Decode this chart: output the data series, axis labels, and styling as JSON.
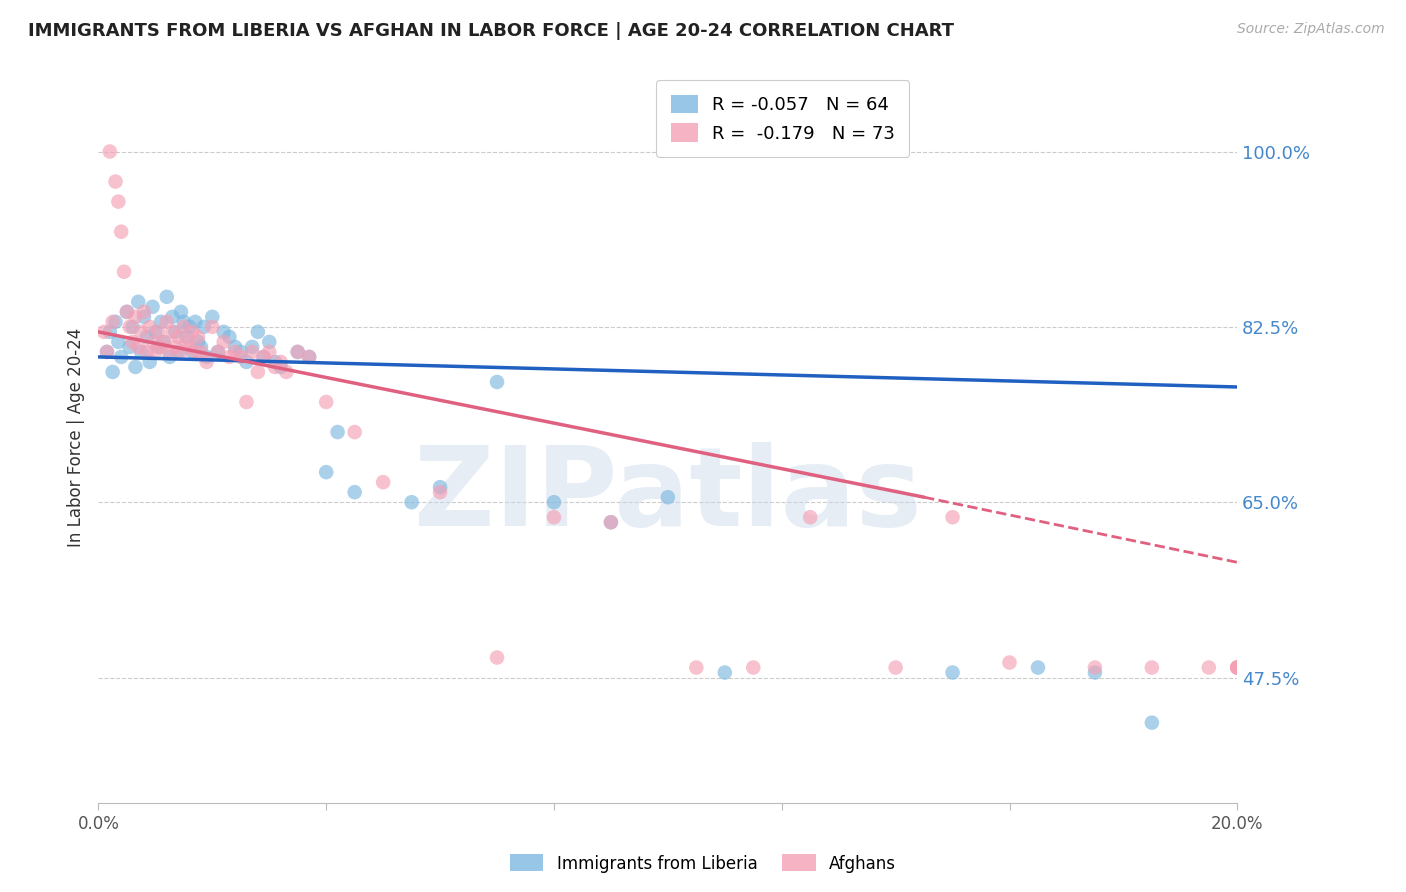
{
  "title": "IMMIGRANTS FROM LIBERIA VS AFGHAN IN LABOR FORCE | AGE 20-24 CORRELATION CHART",
  "source": "Source: ZipAtlas.com",
  "ylabel": "In Labor Force | Age 20-24",
  "yticks": [
    47.5,
    65.0,
    82.5,
    100.0
  ],
  "ytick_labels": [
    "47.5%",
    "65.0%",
    "82.5%",
    "100.0%"
  ],
  "xmin": 0.0,
  "xmax": 20.0,
  "ymin": 35.0,
  "ymax": 108.0,
  "liberia_color": "#7db8e0",
  "afghan_color": "#f4a0b5",
  "liberia_line_color": "#2060c0",
  "afghan_line_color": "#e06080",
  "watermark": "ZIPatlas",
  "liberia_legend": "R = -0.057   N = 64",
  "afghan_legend": "R =  -0.179   N = 73",
  "legend_label_blue": "Immigrants from Liberia",
  "legend_label_pink": "Afghans",
  "lib_trend_x0": 0.0,
  "lib_trend_y0": 79.5,
  "lib_trend_x1": 20.0,
  "lib_trend_y1": 76.5,
  "afg_trend_x0": 0.0,
  "afg_trend_y0": 82.0,
  "afg_trend_x1": 14.5,
  "afg_trend_y1": 65.5,
  "afg_dash_x0": 14.5,
  "afg_dash_y0": 65.5,
  "afg_dash_x1": 20.0,
  "afg_dash_y1": 59.0,
  "liberia_x": [
    0.15,
    0.2,
    0.25,
    0.3,
    0.35,
    0.4,
    0.5,
    0.55,
    0.6,
    0.65,
    0.7,
    0.75,
    0.8,
    0.85,
    0.9,
    0.95,
    1.0,
    1.05,
    1.1,
    1.15,
    1.2,
    1.25,
    1.3,
    1.35,
    1.4,
    1.45,
    1.5,
    1.55,
    1.6,
    1.65,
    1.7,
    1.75,
    1.8,
    1.85,
    1.9,
    2.0,
    2.1,
    2.2,
    2.3,
    2.4,
    2.5,
    2.6,
    2.7,
    2.8,
    2.9,
    3.0,
    3.1,
    3.2,
    3.5,
    3.7,
    4.0,
    4.2,
    4.5,
    5.5,
    6.0,
    7.0,
    8.0,
    9.0,
    10.0,
    11.0,
    15.0,
    16.5,
    17.5,
    18.5
  ],
  "liberia_y": [
    80.0,
    82.0,
    78.0,
    83.0,
    81.0,
    79.5,
    84.0,
    80.5,
    82.5,
    78.5,
    85.0,
    80.0,
    83.5,
    81.5,
    79.0,
    84.5,
    82.0,
    80.5,
    83.0,
    81.0,
    85.5,
    79.5,
    83.5,
    82.0,
    80.0,
    84.0,
    83.0,
    81.5,
    82.5,
    80.0,
    83.0,
    81.0,
    80.5,
    82.5,
    79.5,
    83.5,
    80.0,
    82.0,
    81.5,
    80.5,
    80.0,
    79.0,
    80.5,
    82.0,
    79.5,
    81.0,
    79.0,
    78.5,
    80.0,
    79.5,
    68.0,
    72.0,
    66.0,
    65.0,
    66.5,
    77.0,
    65.0,
    63.0,
    65.5,
    48.0,
    48.0,
    48.5,
    48.0,
    43.0
  ],
  "afghan_x": [
    0.1,
    0.15,
    0.2,
    0.25,
    0.3,
    0.35,
    0.4,
    0.45,
    0.5,
    0.55,
    0.6,
    0.65,
    0.7,
    0.75,
    0.8,
    0.85,
    0.9,
    0.95,
    1.0,
    1.05,
    1.1,
    1.15,
    1.2,
    1.25,
    1.3,
    1.35,
    1.4,
    1.45,
    1.5,
    1.55,
    1.6,
    1.65,
    1.7,
    1.75,
    1.8,
    1.9,
    2.0,
    2.1,
    2.2,
    2.3,
    2.4,
    2.5,
    2.6,
    2.7,
    2.8,
    2.9,
    3.0,
    3.1,
    3.2,
    3.3,
    3.5,
    3.7,
    4.0,
    4.5,
    5.0,
    6.0,
    7.0,
    8.0,
    9.0,
    10.5,
    11.5,
    12.5,
    14.0,
    15.0,
    16.0,
    17.5,
    18.5,
    19.5,
    20.0,
    20.0,
    20.0,
    20.0,
    20.0
  ],
  "afghan_y": [
    82.0,
    80.0,
    100.0,
    83.0,
    97.0,
    95.0,
    92.0,
    88.0,
    84.0,
    82.5,
    81.0,
    83.5,
    80.5,
    82.0,
    84.0,
    80.0,
    82.5,
    81.0,
    80.0,
    82.0,
    80.5,
    81.0,
    83.0,
    80.0,
    82.0,
    80.5,
    81.5,
    80.0,
    82.5,
    81.0,
    80.5,
    82.0,
    80.0,
    81.5,
    80.0,
    79.0,
    82.5,
    80.0,
    81.0,
    79.5,
    80.0,
    79.5,
    75.0,
    80.0,
    78.0,
    79.5,
    80.0,
    78.5,
    79.0,
    78.0,
    80.0,
    79.5,
    75.0,
    72.0,
    67.0,
    66.0,
    49.5,
    63.5,
    63.0,
    48.5,
    48.5,
    63.5,
    48.5,
    63.5,
    49.0,
    48.5,
    48.5,
    48.5,
    48.5,
    48.5,
    48.5,
    48.5,
    48.5
  ]
}
